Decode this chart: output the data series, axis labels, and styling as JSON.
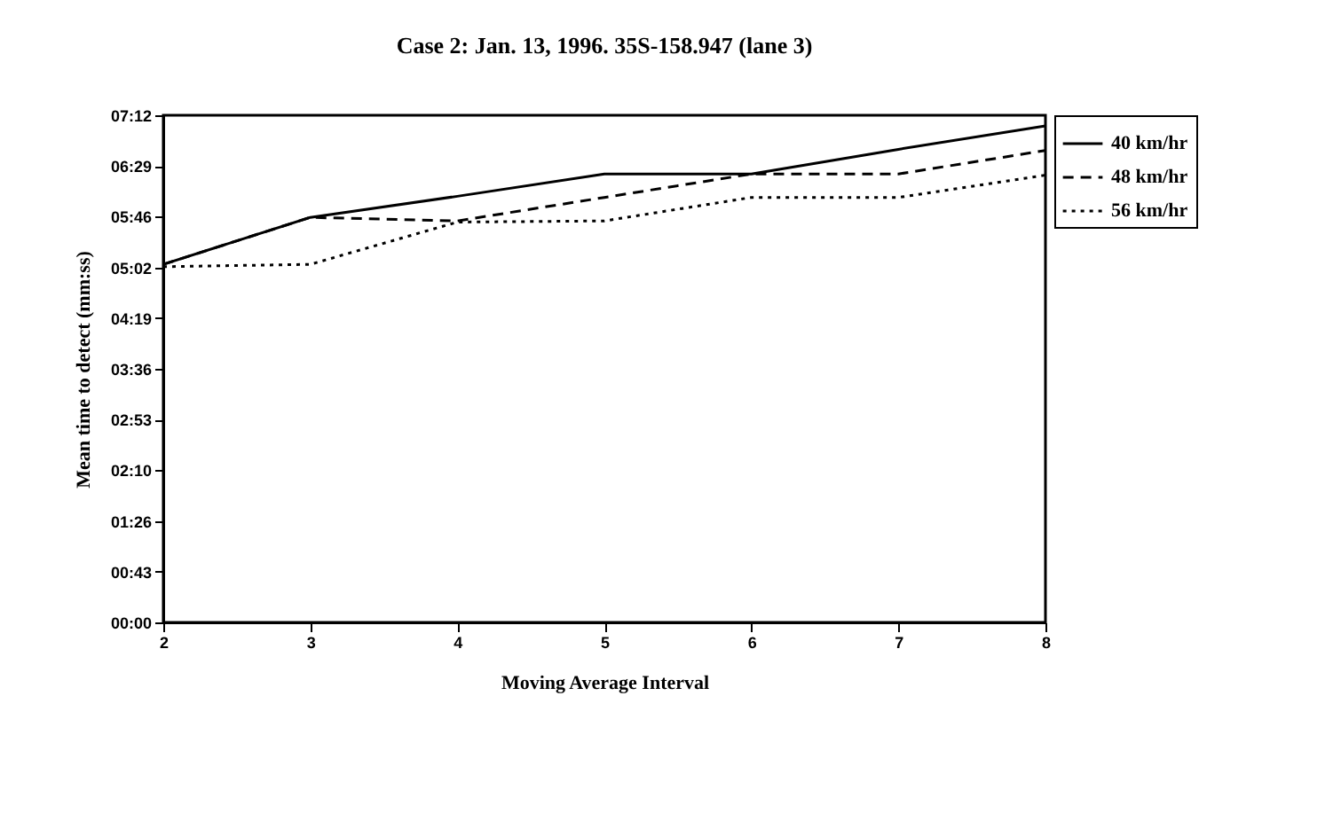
{
  "chart_data": {
    "type": "line",
    "title": "Case 2: Jan. 13, 1996.  35S-158.947 (lane 3)",
    "xlabel": "Moving Average Interval",
    "ylabel": "Mean time to detect (mm:ss)",
    "x": [
      2,
      3,
      4,
      5,
      6,
      7,
      8
    ],
    "series": [
      {
        "name": "40 km/hr",
        "color": "#000000",
        "line_style": "solid",
        "values": [
          305,
          345,
          363,
          382,
          382,
          403,
          423
        ]
      },
      {
        "name": "48 km/hr",
        "color": "#000000",
        "line_style": "dashed",
        "values": [
          305,
          345,
          342,
          362,
          382,
          382,
          402
        ]
      },
      {
        "name": "56 km/hr",
        "color": "#000000",
        "line_style": "dotted",
        "values": [
          303,
          305,
          341,
          342,
          362,
          362,
          381
        ]
      }
    ],
    "xlim": [
      2,
      8
    ],
    "xticks": [
      2,
      3,
      4,
      5,
      6,
      7,
      8
    ],
    "ylim": [
      0,
      432
    ],
    "yticks": [
      {
        "value": 0,
        "label": "00:00"
      },
      {
        "value": 43.2,
        "label": "00:43"
      },
      {
        "value": 86.4,
        "label": "01:26"
      },
      {
        "value": 129.6,
        "label": "02:10"
      },
      {
        "value": 172.8,
        "label": "02:53"
      },
      {
        "value": 216,
        "label": "03:36"
      },
      {
        "value": 259.2,
        "label": "04:19"
      },
      {
        "value": 302.4,
        "label": "05:02"
      },
      {
        "value": 345.6,
        "label": "05:46"
      },
      {
        "value": 388.8,
        "label": "06:29"
      },
      {
        "value": 432,
        "label": "07:12"
      }
    ],
    "grid": false,
    "legend": "right",
    "marker": "none"
  }
}
